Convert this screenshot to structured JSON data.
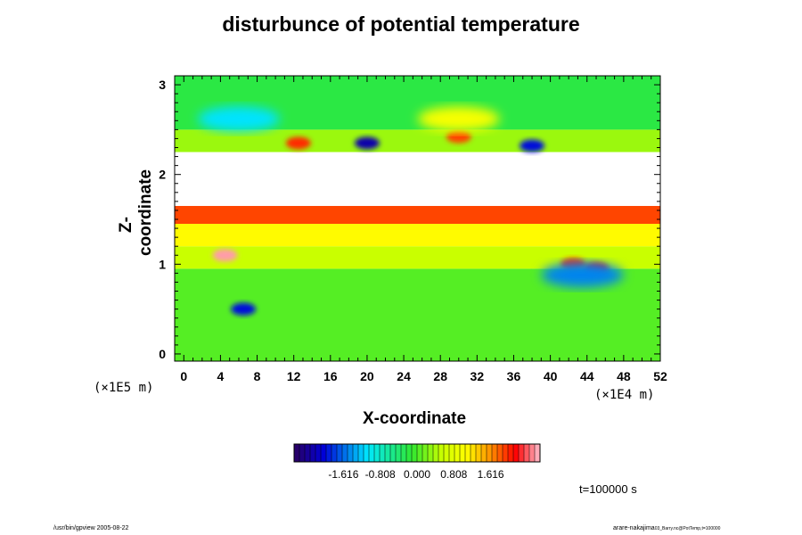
{
  "figure": {
    "title": "disturbunce of potential temperature",
    "xlabel": "X-coordinate",
    "ylabel": "Z-coordinate",
    "x_multiplier": "(×1E4 m)",
    "z_multiplier": "(×1E5 m)",
    "time_label": "t=100000 s",
    "footer_left": "/usr/bin/gpview 2005-08-22",
    "footer_right_main": "arare-nakajima",
    "footer_right_sub": "03_Barry.nc@PotTemp,t=100000"
  },
  "chart_data": {
    "type": "heatmap",
    "title": "disturbunce of potential temperature",
    "xlabel": "X-coordinate",
    "ylabel": "Z-coordinate",
    "xlim": [
      -1,
      52
    ],
    "ylim": [
      -0.08,
      3.1
    ],
    "x_ticks": [
      0,
      4,
      8,
      12,
      16,
      20,
      24,
      28,
      32,
      36,
      40,
      44,
      48,
      52
    ],
    "x_tick_labels": [
      "0",
      "4",
      "8",
      "12",
      "16",
      "20",
      "24",
      "28",
      "32",
      "36",
      "40",
      "44",
      "48",
      "52"
    ],
    "y_ticks": [
      0,
      1,
      2,
      3
    ],
    "y_tick_labels": [
      "0",
      "1",
      "2",
      "3"
    ],
    "colorbar": {
      "range": [
        -2.7,
        2.7
      ],
      "tick_values": [
        -1.616,
        -0.808,
        0.0,
        0.808,
        1.616
      ],
      "tick_labels": [
        "-1.616",
        "-0.808",
        "0.000",
        "0.808",
        "1.616"
      ]
    },
    "bands": [
      {
        "z_bottom": -0.08,
        "z_top": 0.95,
        "value": 0.05
      },
      {
        "z_bottom": 0.95,
        "z_top": 1.2,
        "value": 0.55
      },
      {
        "z_bottom": 1.2,
        "z_top": 1.45,
        "value": 1.1
      },
      {
        "z_bottom": 1.45,
        "z_top": 1.65,
        "value": 1.9
      },
      {
        "z_bottom": 1.65,
        "z_top": 2.25,
        "value": null
      },
      {
        "z_bottom": 2.25,
        "z_top": 2.5,
        "value": 0.35
      },
      {
        "z_bottom": 2.5,
        "z_top": 3.1,
        "value": -0.2
      }
    ],
    "features": [
      {
        "x": 4.5,
        "z": 1.1,
        "value": 2.6
      },
      {
        "x": 6.5,
        "z": 0.5,
        "value": -2.0
      },
      {
        "x": 12.5,
        "z": 2.35,
        "value": 2.0
      },
      {
        "x": 20,
        "z": 2.35,
        "value": -2.3
      },
      {
        "x": 30,
        "z": 2.42,
        "value": 1.9
      },
      {
        "x": 38,
        "z": 2.32,
        "value": -2.0
      },
      {
        "x": 42.5,
        "z": 1.0,
        "value": 2.0
      },
      {
        "x": 45,
        "z": 0.95,
        "value": 2.1
      },
      {
        "x": 43.5,
        "z": 0.88,
        "value": -1.5
      },
      {
        "x": 6,
        "z": 2.62,
        "value": -1.1
      },
      {
        "x": 30,
        "z": 2.62,
        "value": 1.0
      }
    ],
    "note_values": {
      "missing": "white"
    }
  }
}
